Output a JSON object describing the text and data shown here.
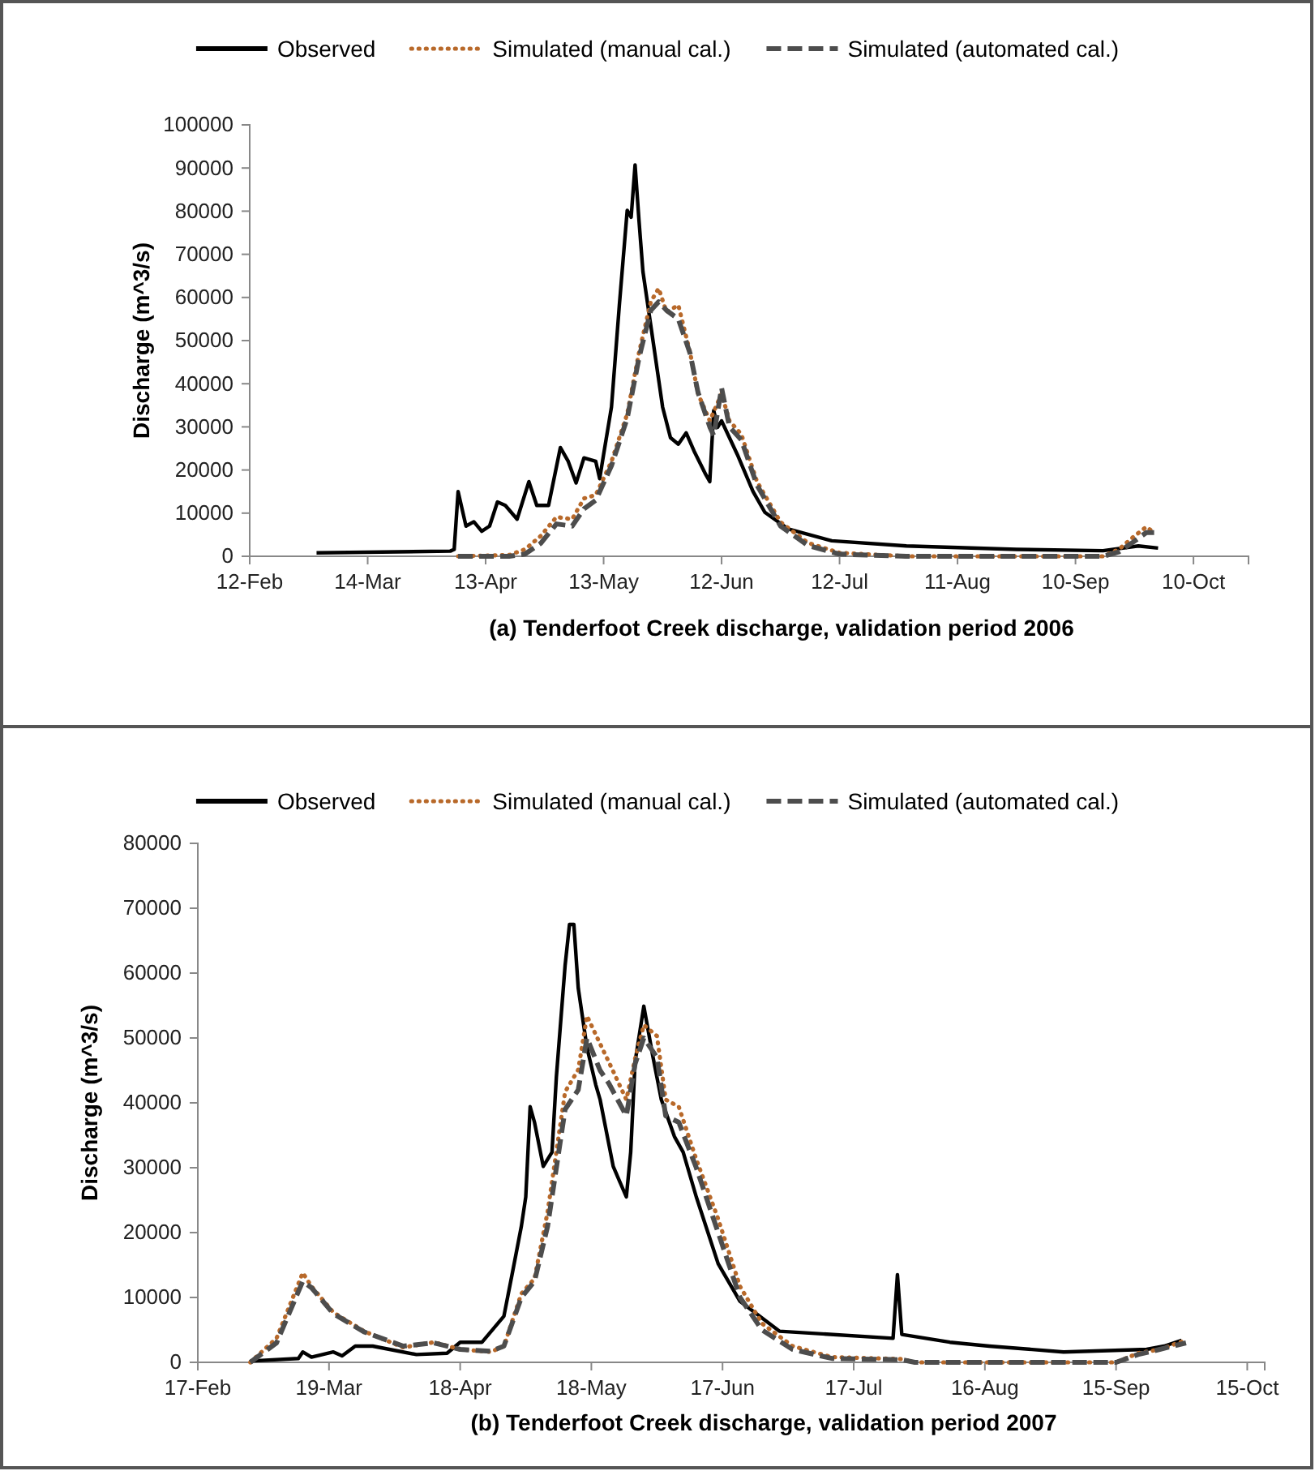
{
  "chart_data": [
    {
      "type": "line",
      "xlabel": "(a) Tenderfoot Creek discharge, validation period 2006",
      "ylabel": "Discharge (m^3/s)",
      "legend": "top",
      "grid": false,
      "xlim": [
        "--02-12",
        "--10-24"
      ],
      "xticks": [
        {
          "value": "--02-12",
          "label": "12-Feb"
        },
        {
          "value": "--03-14",
          "label": "14-Mar"
        },
        {
          "value": "--04-13",
          "label": "13-Apr"
        },
        {
          "value": "--05-13",
          "label": "13-May"
        },
        {
          "value": "--06-12",
          "label": "12-Jun"
        },
        {
          "value": "--07-12",
          "label": "12-Jul"
        },
        {
          "value": "--08-11",
          "label": "11-Aug"
        },
        {
          "value": "--09-10",
          "label": "10-Sep"
        },
        {
          "value": "--10-10",
          "label": "10-Oct"
        }
      ],
      "ylim": [
        0,
        100000
      ],
      "yticks": [
        0,
        10000,
        20000,
        30000,
        40000,
        50000,
        60000,
        70000,
        80000,
        90000,
        100000
      ],
      "series": [
        {
          "name": "Observed",
          "color": "#000000",
          "line_style": "solid",
          "x": [
            "--03-01",
            "--04-04",
            "--04-05",
            "--04-06",
            "--04-08",
            "--04-10",
            "--04-12",
            "--04-14",
            "--04-16",
            "--04-18",
            "--04-21",
            "--04-24",
            "--04-26",
            "--04-29",
            "--05-02",
            "--05-04",
            "--05-06",
            "--05-08",
            "--05-11",
            "--05-12",
            "--05-13",
            "--05-15",
            "--05-17",
            "--05-19",
            "--05-20",
            "--05-21",
            "--05-22",
            "--05-23",
            "--05-26",
            "--05-28",
            "--05-30",
            "--06-01",
            "--06-03",
            "--06-05",
            "--06-08",
            "--06-09",
            "--06-10",
            "--06-11",
            "--06-12",
            "--06-16",
            "--06-20",
            "--06-23",
            "--06-29",
            "--07-10",
            "--07-29",
            "--08-26",
            "--09-17",
            "--09-26",
            "--10-01"
          ],
          "values": [
            800,
            1200,
            1600,
            15000,
            7000,
            8000,
            5800,
            7000,
            12600,
            11800,
            8600,
            17300,
            11800,
            11800,
            25200,
            22000,
            17000,
            22800,
            22000,
            18000,
            23600,
            34600,
            58200,
            80200,
            78600,
            90700,
            77800,
            66000,
            47200,
            34600,
            27500,
            26000,
            28600,
            24400,
            18900,
            17300,
            33800,
            29900,
            31400,
            23600,
            15000,
            10200,
            6300,
            3600,
            2400,
            1600,
            1300,
            2400,
            1900
          ]
        },
        {
          "name": "Simulated (manual cal.)",
          "color": "#b8692a",
          "line_style": "dotted",
          "x": [
            "--04-06",
            "--04-19",
            "--04-23",
            "--04-27",
            "--05-01",
            "--05-05",
            "--05-08",
            "--05-11",
            "--05-15",
            "--05-19",
            "--05-22",
            "--05-25",
            "--05-27",
            "--05-29",
            "--06-01",
            "--06-04",
            "--06-06",
            "--06-09",
            "--06-12",
            "--06-14",
            "--06-17",
            "--06-21",
            "--06-27",
            "--07-04",
            "--07-12",
            "--07-29",
            "--09-17",
            "--09-21",
            "--09-25",
            "--09-28",
            "--09-30"
          ],
          "values": [
            0,
            300,
            1600,
            4700,
            9100,
            8600,
            13400,
            14200,
            22000,
            33000,
            47200,
            59000,
            62100,
            56600,
            58200,
            47200,
            37700,
            31400,
            37700,
            31400,
            28300,
            17300,
            7900,
            3100,
            800,
            0,
            0,
            1600,
            4700,
            6800,
            5500
          ]
        },
        {
          "name": "Simulated (automated cal.)",
          "color": "#4d4d4d",
          "line_style": "dashed",
          "x": [
            "--04-06",
            "--04-19",
            "--04-23",
            "--04-27",
            "--05-01",
            "--05-05",
            "--05-08",
            "--05-11",
            "--05-15",
            "--05-19",
            "--05-22",
            "--05-25",
            "--05-27",
            "--05-29",
            "--06-01",
            "--06-04",
            "--06-06",
            "--06-09",
            "--06-10",
            "--06-12",
            "--06-14",
            "--06-17",
            "--06-21",
            "--06-27",
            "--07-04",
            "--07-12",
            "--07-29",
            "--09-17",
            "--09-21",
            "--09-25",
            "--09-28",
            "--09-30"
          ],
          "values": [
            0,
            0,
            500,
            3000,
            7500,
            7000,
            11000,
            13000,
            21000,
            32000,
            46000,
            57000,
            59000,
            57000,
            55000,
            47000,
            38000,
            30000,
            28000,
            39000,
            30000,
            27000,
            16500,
            7000,
            2500,
            500,
            0,
            0,
            1000,
            3500,
            5500,
            5500
          ]
        }
      ]
    },
    {
      "type": "line",
      "xlabel": "(b) Tenderfoot Creek discharge, validation period 2007",
      "ylabel": "Discharge (m^3/s)",
      "legend": "top",
      "grid": false,
      "xlim": [
        "--02-17",
        "--10-19"
      ],
      "xticks": [
        {
          "value": "--02-17",
          "label": "17-Feb"
        },
        {
          "value": "--03-19",
          "label": "19-Mar"
        },
        {
          "value": "--04-18",
          "label": "18-Apr"
        },
        {
          "value": "--05-18",
          "label": "18-May"
        },
        {
          "value": "--06-17",
          "label": "17-Jun"
        },
        {
          "value": "--07-17",
          "label": "17-Jul"
        },
        {
          "value": "--08-16",
          "label": "16-Aug"
        },
        {
          "value": "--09-15",
          "label": "15-Sep"
        },
        {
          "value": "--10-15",
          "label": "15-Oct"
        }
      ],
      "ylim": [
        0,
        80000
      ],
      "yticks": [
        0,
        10000,
        20000,
        30000,
        40000,
        50000,
        60000,
        70000,
        80000
      ],
      "series": [
        {
          "name": "Observed",
          "color": "#000000",
          "line_style": "solid",
          "x": [
            "--03-01",
            "--03-12",
            "--03-13",
            "--03-15",
            "--03-20",
            "--03-22",
            "--03-25",
            "--03-29",
            "--04-08",
            "--04-15",
            "--04-18",
            "--04-23",
            "--04-28",
            "--04-30",
            "--05-02",
            "--05-03",
            "--05-04",
            "--05-05",
            "--05-07",
            "--05-09",
            "--05-10",
            "--05-12",
            "--05-13",
            "--05-14",
            "--05-15",
            "--05-17",
            "--05-19",
            "--05-20",
            "--05-23",
            "--05-26",
            "--05-27",
            "--05-28",
            "--05-30",
            "--06-01",
            "--06-03",
            "--06-06",
            "--06-08",
            "--06-11",
            "--06-16",
            "--06-21",
            "--06-30",
            "--07-26",
            "--07-27",
            "--07-28",
            "--08-08",
            "--08-17",
            "--09-03",
            "--09-22",
            "--09-26",
            "--09-30"
          ],
          "values": [
            200,
            600,
            1600,
            800,
            1600,
            1000,
            2500,
            2500,
            1200,
            1400,
            3100,
            3100,
            7100,
            14000,
            21000,
            25500,
            39400,
            37000,
            30200,
            32400,
            44000,
            61200,
            67500,
            67500,
            57700,
            48500,
            42800,
            40500,
            30200,
            25500,
            32400,
            46300,
            54900,
            47400,
            40500,
            34800,
            32400,
            25500,
            15200,
            9400,
            4800,
            3700,
            13500,
            4300,
            3100,
            2500,
            1600,
            2000,
            2500,
            3400
          ]
        },
        {
          "name": "Simulated (manual cal.)",
          "color": "#b8692a",
          "line_style": "dotted",
          "x": [
            "--03-01",
            "--03-07",
            "--03-13",
            "--03-15",
            "--03-20",
            "--03-27",
            "--04-05",
            "--04-12",
            "--04-18",
            "--04-25",
            "--04-28",
            "--05-02",
            "--05-05",
            "--05-08",
            "--05-12",
            "--05-15",
            "--05-17",
            "--05-20",
            "--05-22",
            "--05-26",
            "--05-28",
            "--05-30",
            "--06-02",
            "--06-04",
            "--06-07",
            "--06-11",
            "--06-16",
            "--06-21",
            "--06-26",
            "--07-03",
            "--07-12",
            "--07-28",
            "--07-31",
            "--09-15",
            "--09-20",
            "--09-25",
            "--10-01"
          ],
          "values": [
            0,
            3700,
            13800,
            11700,
            7700,
            4800,
            2300,
            3100,
            2000,
            1600,
            2500,
            10600,
            12900,
            23200,
            41700,
            45100,
            53400,
            49100,
            46300,
            40500,
            46800,
            52000,
            50300,
            40500,
            39400,
            31300,
            22100,
            11700,
            6000,
            2500,
            800,
            500,
            0,
            0,
            1400,
            2000,
            3400
          ]
        },
        {
          "name": "Simulated (automated cal.)",
          "color": "#4d4d4d",
          "line_style": "dashed",
          "x": [
            "--03-01",
            "--03-07",
            "--03-13",
            "--03-15",
            "--03-20",
            "--03-27",
            "--04-05",
            "--04-12",
            "--04-18",
            "--04-25",
            "--04-28",
            "--05-02",
            "--05-05",
            "--05-08",
            "--05-12",
            "--05-15",
            "--05-17",
            "--05-20",
            "--05-22",
            "--05-26",
            "--05-28",
            "--05-30",
            "--06-02",
            "--06-04",
            "--06-07",
            "--06-11",
            "--06-16",
            "--06-21",
            "--06-26",
            "--07-03",
            "--07-12",
            "--07-28",
            "--07-31",
            "--09-15",
            "--09-20",
            "--09-25",
            "--10-01"
          ],
          "values": [
            0,
            3000,
            12500,
            11500,
            7500,
            4700,
            2500,
            3000,
            2000,
            1700,
            2500,
            10000,
            12500,
            21000,
            39000,
            42000,
            50000,
            45000,
            43000,
            38000,
            46000,
            50000,
            47000,
            38000,
            37000,
            30000,
            20000,
            10000,
            5000,
            2000,
            600,
            400,
            0,
            0,
            1200,
            2000,
            3000
          ]
        }
      ]
    }
  ]
}
